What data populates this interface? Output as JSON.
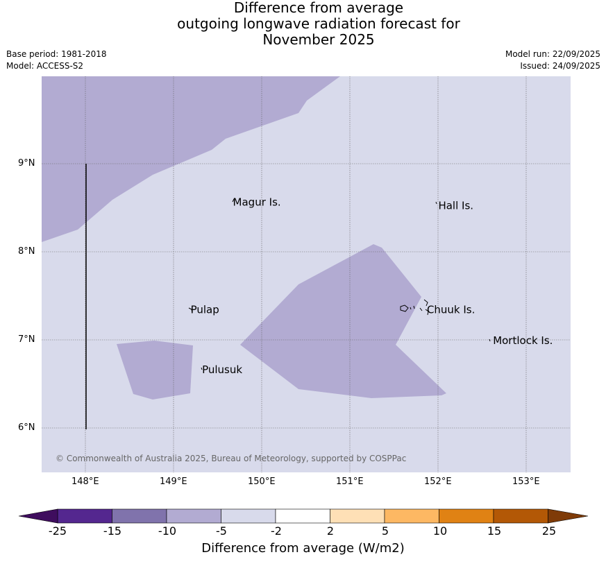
{
  "title": {
    "line1": "Difference from average",
    "line2": "outgoing longwave radiation forecast for",
    "line3": "November 2025"
  },
  "meta": {
    "base_period": "Base period: 1981-2018",
    "model": "Model: ACCESS-S2",
    "model_run": "Model run: 22/09/2025",
    "issued": "Issued: 24/09/2025"
  },
  "axes": {
    "lon_labels": [
      "148°E",
      "149°E",
      "150°E",
      "151°E",
      "152°E",
      "153°E"
    ],
    "lat_labels": [
      "9°N",
      "8°N",
      "7°N",
      "6°N"
    ]
  },
  "places": [
    {
      "name": "Magur Is.",
      "lon": 149.65,
      "lat": 8.57
    },
    {
      "name": "Hall Is.",
      "lon": 151.98,
      "lat": 8.53
    },
    {
      "name": "Pulap",
      "lon": 149.17,
      "lat": 7.35
    },
    {
      "name": "Chuuk Is.",
      "lon": 151.85,
      "lat": 7.35
    },
    {
      "name": "Mortlock Is.",
      "lon": 152.6,
      "lat": 7.0
    },
    {
      "name": "Pulusuk",
      "lon": 149.3,
      "lat": 6.67
    }
  ],
  "attribution": "© Commonwealth of Australia 2025, Bureau of Meteorology, supported by COSPPac",
  "colorbar": {
    "title": "Difference from average (W/m2)",
    "ticks": [
      "-25",
      "-15",
      "-10",
      "-5",
      "-2",
      "2",
      "5",
      "10",
      "15",
      "25"
    ],
    "colors": {
      "lt_-25": "#3f0d5e",
      "-25_-15": "#54278f",
      "-15_-10": "#8073ac",
      "-10_-5": "#b2abd2",
      "-5_-2": "#d8daeb",
      "-2_2": "#ffffff",
      "2_5": "#fee0b6",
      "5_10": "#fdb863",
      "10_15": "#e08214",
      "15_25": "#b35806",
      "gt_25": "#7f3b08"
    }
  },
  "fills": {
    "background_class": "-5_-2",
    "anomaly_class": "-10_-5"
  }
}
